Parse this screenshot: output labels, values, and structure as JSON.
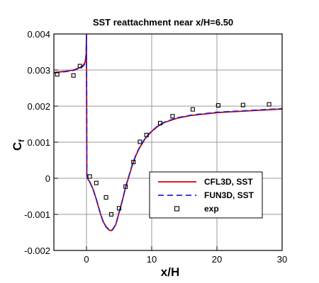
{
  "chart_data": {
    "type": "line",
    "title": "SST reattachment near x/H=6.50",
    "xlabel": "x/H",
    "ylabel": "C",
    "ylabel_subscript": "f",
    "xlim": [
      -5,
      30
    ],
    "ylim": [
      -0.002,
      0.004
    ],
    "xticks": [
      0,
      10,
      20,
      30
    ],
    "xtick_labels": [
      "0",
      "10",
      "20",
      "30"
    ],
    "yticks": [
      -0.002,
      -0.001,
      0,
      0.001,
      0.002,
      0.003,
      0.004
    ],
    "ytick_labels": [
      "-0.002",
      "-0.001",
      "0",
      "0.001",
      "0.002",
      "0.003",
      "0.004"
    ],
    "grid": true,
    "legend_position": "bottom-right",
    "colors": {
      "cfl3d": "#cc0000",
      "fun3d": "#2222cc",
      "exp": "#000000"
    },
    "series": [
      {
        "name": "CFL3D, SST",
        "style": "solid",
        "x": [
          -5,
          -4,
          -3,
          -2,
          -1,
          -0.5,
          -0.2,
          -0.05,
          0,
          0.05,
          0.2,
          0.5,
          1,
          1.5,
          2,
          2.5,
          3,
          3.5,
          3.8,
          4,
          4.5,
          5,
          5.5,
          6,
          6.5,
          7,
          7.5,
          8,
          9,
          10,
          11,
          12,
          14,
          16,
          18,
          20,
          22,
          25,
          28,
          30
        ],
        "y": [
          0.00293,
          0.00295,
          0.00297,
          0.003,
          0.00307,
          0.00313,
          0.00322,
          0.00345,
          0.004,
          0.0001,
          -2e-05,
          -0.0001,
          -0.0003,
          -0.00058,
          -0.0009,
          -0.00118,
          -0.00135,
          -0.00144,
          -0.00145,
          -0.00143,
          -0.00128,
          -0.00095,
          -0.00062,
          -0.00025,
          5e-05,
          0.00035,
          0.0006,
          0.0008,
          0.0011,
          0.0013,
          0.00145,
          0.00155,
          0.00167,
          0.00174,
          0.00178,
          0.00182,
          0.00184,
          0.00187,
          0.0019,
          0.00192
        ]
      },
      {
        "name": "FUN3D, SST",
        "style": "dashed",
        "x": [
          -5,
          -4,
          -3,
          -2,
          -1,
          -0.5,
          -0.2,
          -0.05,
          0,
          0.05,
          0.2,
          0.5,
          1,
          1.5,
          2,
          2.5,
          3,
          3.5,
          3.8,
          4,
          4.5,
          5,
          5.5,
          6,
          6.5,
          7,
          7.5,
          8,
          9,
          10,
          11,
          12,
          14,
          16,
          18,
          20,
          22,
          25,
          28,
          30
        ],
        "y": [
          0.00292,
          0.00294,
          0.00296,
          0.00299,
          0.00305,
          0.00311,
          0.00318,
          0.00335,
          0.004,
          0.0001,
          -2e-05,
          -0.0001,
          -0.0003,
          -0.00057,
          -0.00089,
          -0.00117,
          -0.00134,
          -0.00143,
          -0.00144,
          -0.00142,
          -0.00127,
          -0.00094,
          -0.00061,
          -0.00024,
          6e-05,
          0.00036,
          0.00061,
          0.00081,
          0.00111,
          0.00131,
          0.00146,
          0.00156,
          0.00168,
          0.00175,
          0.00179,
          0.00183,
          0.00185,
          0.00188,
          0.00191,
          0.00193
        ]
      },
      {
        "name": "exp",
        "style": "markers",
        "x": [
          -4.5,
          -2,
          -1,
          0.5,
          1.5,
          3,
          3.8,
          5,
          6,
          7.2,
          8.2,
          9.2,
          11.3,
          13.2,
          16.3,
          20.2,
          24,
          28
        ],
        "y": [
          0.00288,
          0.00285,
          0.00311,
          5e-05,
          -0.00013,
          -0.00053,
          -0.001,
          -0.00083,
          -0.00023,
          0.00045,
          0.00101,
          0.0012,
          0.00153,
          0.00172,
          0.00191,
          0.00202,
          0.00203,
          0.00205
        ]
      }
    ]
  }
}
